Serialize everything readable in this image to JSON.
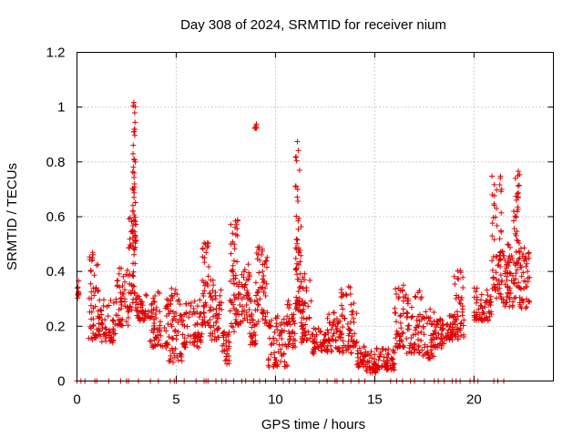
{
  "chart_data": {
    "type": "scatter",
    "title": "Day 308 of 2024, SRMTID for receiver nium",
    "xlabel": "GPS time / hours",
    "ylabel": "SRMTID / TECUs",
    "xlim": [
      0,
      24
    ],
    "ylim": [
      0,
      1.2
    ],
    "xticks": [
      0,
      5,
      10,
      15,
      20
    ],
    "yticks": [
      0,
      0.2,
      0.4,
      0.6,
      0.8,
      1,
      1.2
    ],
    "xtick_labels": [
      "0",
      "5",
      "10",
      "15",
      "20"
    ],
    "ytick_labels": [
      "0",
      "0.2",
      "0.4",
      "0.6",
      "0.8",
      "1",
      "1.2"
    ],
    "grid": true,
    "marker": "+",
    "color": "#e00000",
    "clusters": [
      {
        "x": [
          0.0,
          0.1
        ],
        "y": [
          0.3,
          0.37
        ]
      },
      {
        "x": [
          0.6,
          1.1
        ],
        "y": [
          0.15,
          0.48
        ]
      },
      {
        "x": [
          1.1,
          2.0
        ],
        "y": [
          0.14,
          0.3
        ]
      },
      {
        "x": [
          2.0,
          2.6
        ],
        "y": [
          0.2,
          0.42
        ]
      },
      {
        "x": [
          2.6,
          3.0
        ],
        "y": [
          0.25,
          0.64
        ]
      },
      {
        "x": [
          2.8,
          2.95
        ],
        "y": [
          0.5,
          1.02
        ]
      },
      {
        "x": [
          3.0,
          3.6
        ],
        "y": [
          0.22,
          0.33
        ]
      },
      {
        "x": [
          3.6,
          4.6
        ],
        "y": [
          0.12,
          0.33
        ]
      },
      {
        "x": [
          4.6,
          5.3
        ],
        "y": [
          0.06,
          0.34
        ]
      },
      {
        "x": [
          5.3,
          6.3
        ],
        "y": [
          0.12,
          0.3
        ]
      },
      {
        "x": [
          6.3,
          6.7
        ],
        "y": [
          0.2,
          0.52
        ]
      },
      {
        "x": [
          6.7,
          7.3
        ],
        "y": [
          0.15,
          0.37
        ]
      },
      {
        "x": [
          7.3,
          7.7
        ],
        "y": [
          0.06,
          0.18
        ]
      },
      {
        "x": [
          7.7,
          8.1
        ],
        "y": [
          0.18,
          0.59
        ]
      },
      {
        "x": [
          8.1,
          8.7
        ],
        "y": [
          0.2,
          0.43
        ]
      },
      {
        "x": [
          8.7,
          9.0
        ],
        "y": [
          0.13,
          0.3
        ]
      },
      {
        "x": [
          8.95,
          9.05
        ],
        "y": [
          0.92,
          0.94
        ]
      },
      {
        "x": [
          9.0,
          9.6
        ],
        "y": [
          0.2,
          0.49
        ]
      },
      {
        "x": [
          9.6,
          10.6
        ],
        "y": [
          0.05,
          0.24
        ]
      },
      {
        "x": [
          10.6,
          11.0
        ],
        "y": [
          0.12,
          0.3
        ]
      },
      {
        "x": [
          11.0,
          11.3
        ],
        "y": [
          0.25,
          0.88
        ]
      },
      {
        "x": [
          11.3,
          11.8
        ],
        "y": [
          0.14,
          0.41
        ]
      },
      {
        "x": [
          11.8,
          12.6
        ],
        "y": [
          0.1,
          0.2
        ]
      },
      {
        "x": [
          12.6,
          13.3
        ],
        "y": [
          0.1,
          0.25
        ]
      },
      {
        "x": [
          13.3,
          14.1
        ],
        "y": [
          0.1,
          0.36
        ]
      },
      {
        "x": [
          14.1,
          14.5
        ],
        "y": [
          0.05,
          0.14
        ]
      },
      {
        "x": [
          14.5,
          15.3
        ],
        "y": [
          0.03,
          0.12
        ]
      },
      {
        "x": [
          15.3,
          16.0
        ],
        "y": [
          0.04,
          0.12
        ]
      },
      {
        "x": [
          16.0,
          16.6
        ],
        "y": [
          0.12,
          0.35
        ]
      },
      {
        "x": [
          16.6,
          17.4
        ],
        "y": [
          0.1,
          0.33
        ]
      },
      {
        "x": [
          17.4,
          18.0
        ],
        "y": [
          0.08,
          0.27
        ]
      },
      {
        "x": [
          18.0,
          18.6
        ],
        "y": [
          0.12,
          0.23
        ]
      },
      {
        "x": [
          18.6,
          19.0
        ],
        "y": [
          0.15,
          0.25
        ]
      },
      {
        "x": [
          19.0,
          19.5
        ],
        "y": [
          0.15,
          0.42
        ]
      },
      {
        "x": [
          20.0,
          20.9
        ],
        "y": [
          0.22,
          0.34
        ]
      },
      {
        "x": [
          20.9,
          21.4
        ],
        "y": [
          0.3,
          0.76
        ]
      },
      {
        "x": [
          21.4,
          22.0
        ],
        "y": [
          0.27,
          0.55
        ]
      },
      {
        "x": [
          22.0,
          22.3
        ],
        "y": [
          0.3,
          0.77
        ]
      },
      {
        "x": [
          22.3,
          22.8
        ],
        "y": [
          0.26,
          0.49
        ]
      }
    ],
    "zero_x": [
      0.0,
      0.2,
      0.4,
      0.9,
      1.0,
      1.6,
      2.2,
      2.5,
      2.6,
      3.1,
      3.7,
      4.1,
      4.7,
      4.9,
      5.0,
      5.4,
      6.0,
      6.4,
      6.5,
      6.6,
      7.0,
      7.3,
      7.5,
      7.9,
      8.3,
      8.5,
      8.9,
      9.2,
      9.5,
      10.0,
      10.4,
      10.7,
      11.0,
      11.5,
      12.2,
      12.6,
      13.0,
      13.1,
      13.4,
      13.8,
      14.2,
      14.5,
      15.0,
      15.8,
      16.1,
      16.4,
      16.8,
      17.0,
      17.5,
      18.0,
      18.2,
      18.5,
      18.9,
      19.1,
      19.3,
      19.8,
      20.0,
      20.2,
      21.0,
      21.2,
      21.5
    ]
  }
}
